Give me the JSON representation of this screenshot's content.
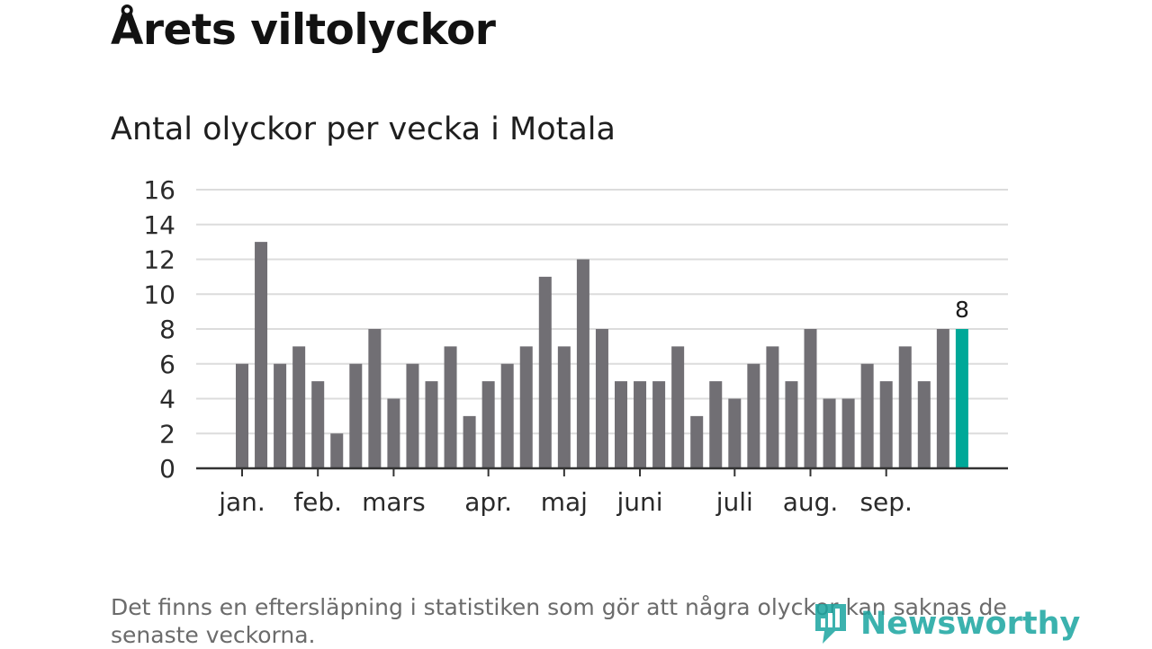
{
  "header": {
    "title": "Årets viltolyckor",
    "subtitle": "Antal olyckor per vecka i Motala"
  },
  "chart_data": {
    "type": "bar",
    "title": "Antal olyckor per vecka i Motala",
    "xlabel": "",
    "ylabel": "",
    "ylim": [
      0,
      16
    ],
    "yticks": [
      "0",
      "2",
      "4",
      "6",
      "8",
      "10",
      "12",
      "14",
      "16"
    ],
    "grid": true,
    "values": [
      6,
      13,
      6,
      7,
      5,
      2,
      6,
      8,
      4,
      6,
      5,
      7,
      3,
      5,
      6,
      7,
      11,
      7,
      12,
      8,
      5,
      5,
      5,
      7,
      3,
      5,
      4,
      6,
      7,
      5,
      8,
      4,
      4,
      6,
      5,
      7,
      5,
      8,
      8
    ],
    "highlight_index": 38,
    "highlight_label": "8",
    "month_labels": [
      {
        "label": "jan.",
        "week_index": 0
      },
      {
        "label": "feb.",
        "week_index": 4
      },
      {
        "label": "mars",
        "week_index": 8
      },
      {
        "label": "apr.",
        "week_index": 13
      },
      {
        "label": "maj",
        "week_index": 17
      },
      {
        "label": "juni",
        "week_index": 21
      },
      {
        "label": "juli",
        "week_index": 26
      },
      {
        "label": "aug.",
        "week_index": 30
      },
      {
        "label": "sep.",
        "week_index": 34
      }
    ],
    "colors": {
      "bar": "#716f74",
      "highlight": "#00a898",
      "grid": "#dcdcdc",
      "axis": "#333333"
    }
  },
  "footer": {
    "note": "Det finns en eftersläpning i statistiken som gör att några olyckor kan saknas de senaste veckorna.",
    "brand": "Newsworthy"
  }
}
